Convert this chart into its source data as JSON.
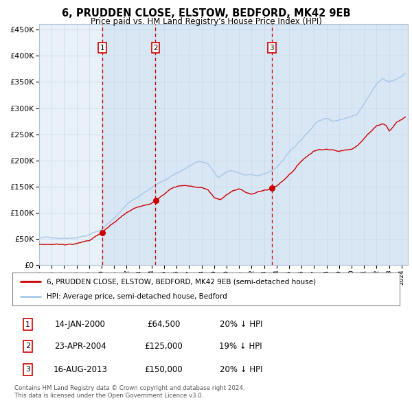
{
  "title": "6, PRUDDEN CLOSE, ELSTOW, BEDFORD, MK42 9EB",
  "subtitle": "Price paid vs. HM Land Registry's House Price Index (HPI)",
  "legend_line1": "6, PRUDDEN CLOSE, ELSTOW, BEDFORD, MK42 9EB (semi-detached house)",
  "legend_line2": "HPI: Average price, semi-detached house, Bedford",
  "footer1": "Contains HM Land Registry data © Crown copyright and database right 2024.",
  "footer2": "This data is licensed under the Open Government Licence v3.0.",
  "transactions": [
    {
      "num": 1,
      "date": "14-JAN-2000",
      "price": 64500,
      "price_str": "£64,500",
      "pct": "20%",
      "dir": "↓",
      "x": 2000.04
    },
    {
      "num": 2,
      "date": "23-APR-2004",
      "price": 125000,
      "price_str": "£125,000",
      "pct": "19%",
      "dir": "↓",
      "x": 2004.31
    },
    {
      "num": 3,
      "date": "16-AUG-2013",
      "price": 150000,
      "price_str": "£150,000",
      "pct": "20%",
      "dir": "↓",
      "x": 2013.62
    }
  ],
  "hpi_color": "#a8c8e8",
  "price_color": "#cc0000",
  "vline_color": "#cc0000",
  "plot_bg": "#e8f0f8",
  "ylim": [
    0,
    460000
  ],
  "xlim_start": 1995.0,
  "xlim_end": 2024.5
}
